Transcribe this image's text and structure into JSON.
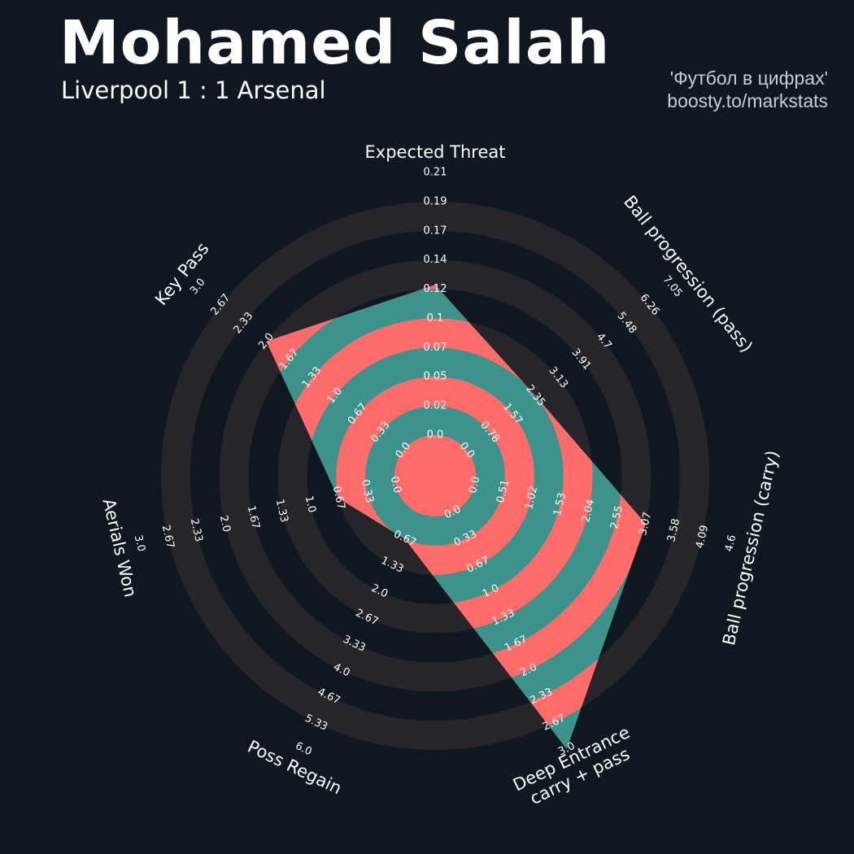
{
  "header": {
    "player": "Mohamed Salah",
    "match": "Liverpool 1 : 1 Arsenal",
    "credit_line1": "'Футбол в цифрах'",
    "credit_line2": "boosty.to/markstats"
  },
  "colors": {
    "background": "#0f1820",
    "ring_band": "#28242b",
    "fill_primary": "#3d938c",
    "fill_secondary": "#ff6c69",
    "text": "#ffffff"
  },
  "chart_data": {
    "type": "radar",
    "title": "Mohamed Salah",
    "subtitle": "Liverpool 1 : 1 Arsenal",
    "series": [
      {
        "values": [
          0.12,
          2.35,
          3.07,
          3.0,
          0.67,
          0.67,
          2.0
        ]
      }
    ],
    "axes": [
      {
        "label": "Expected Threat",
        "min": 0.0,
        "max": 0.21,
        "ticks": [
          "0.0",
          "0.02",
          "0.05",
          "0.07",
          "0.1",
          "0.12",
          "0.14",
          "0.17",
          "0.19",
          "0.21"
        ]
      },
      {
        "label": "Ball progression (pass)",
        "min": 0.0,
        "max": 7.05,
        "ticks": [
          "0.0",
          "0.78",
          "1.57",
          "2.35",
          "3.13",
          "3.91",
          "4.7",
          "5.48",
          "6.26",
          "7.05"
        ]
      },
      {
        "label": "Ball progression (carry)",
        "min": 0.0,
        "max": 4.6,
        "ticks": [
          "0.0",
          "0.51",
          "1.02",
          "1.53",
          "2.04",
          "2.55",
          "3.07",
          "3.58",
          "4.09",
          "4.6"
        ]
      },
      {
        "label": "Deep Entrance\ncarry + pass",
        "min": 0.0,
        "max": 3.0,
        "ticks": [
          "0.0",
          "0.33",
          "0.67",
          "1.0",
          "1.33",
          "1.67",
          "2.0",
          "2.33",
          "2.67",
          "3.0"
        ]
      },
      {
        "label": "Poss Regain",
        "min": 0.0,
        "max": 6.0,
        "ticks": [
          "0.67",
          "1.33",
          "2.0",
          "2.67",
          "3.33",
          "4.0",
          "4.67",
          "5.33",
          "6.0"
        ]
      },
      {
        "label": "Aerials Won",
        "min": 0.0,
        "max": 3.0,
        "ticks": [
          "0.0",
          "0.33",
          "0.67",
          "1.0",
          "1.33",
          "1.67",
          "2.0",
          "2.33",
          "2.67",
          "3.0"
        ]
      },
      {
        "label": "Key Pass",
        "min": 0.0,
        "max": 3.0,
        "ticks": [
          "0.0",
          "0.33",
          "0.67",
          "1.0",
          "1.33",
          "1.67",
          "2.0",
          "2.33",
          "2.67",
          "3.0"
        ]
      }
    ]
  }
}
